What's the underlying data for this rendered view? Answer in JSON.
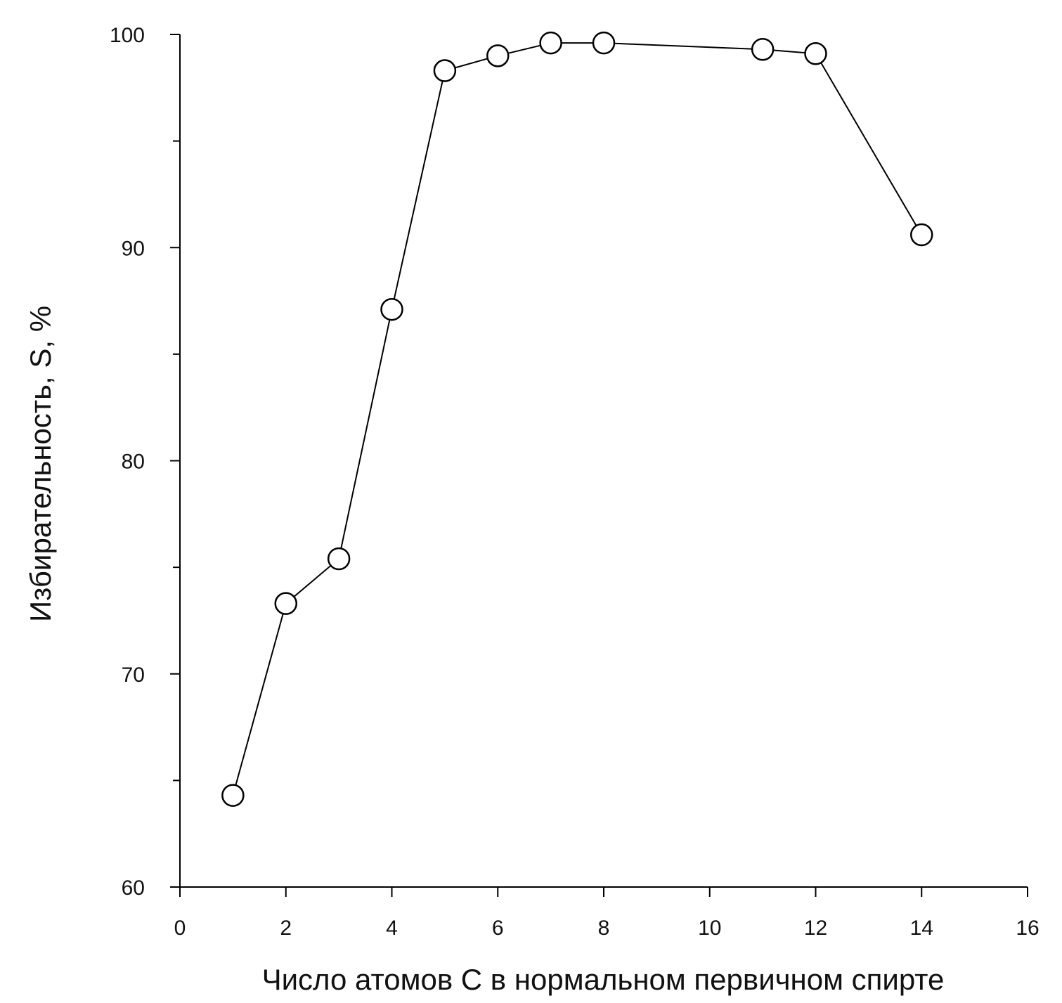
{
  "chart_data": {
    "type": "line",
    "title": "",
    "xlabel": "Число атомов С в нормальном первичном спирте",
    "ylabel": "Избирательность, S, %",
    "xlim": [
      0,
      16
    ],
    "ylim": [
      60,
      100
    ],
    "x_ticks": [
      0,
      2,
      4,
      6,
      8,
      10,
      12,
      14,
      16
    ],
    "y_ticks": [
      60,
      70,
      80,
      90,
      100
    ],
    "y_minor_ticks": [
      65,
      75,
      85,
      95
    ],
    "grid": false,
    "legend": "none",
    "marker": "open-circle",
    "line_color": "#000000",
    "series": [
      {
        "x": [
          1,
          2,
          3,
          4,
          5,
          6,
          7,
          8,
          11,
          12,
          14
        ],
        "y": [
          64.3,
          73.3,
          75.4,
          87.1,
          98.3,
          99.0,
          99.6,
          99.6,
          99.3,
          99.1,
          90.6
        ]
      }
    ]
  }
}
